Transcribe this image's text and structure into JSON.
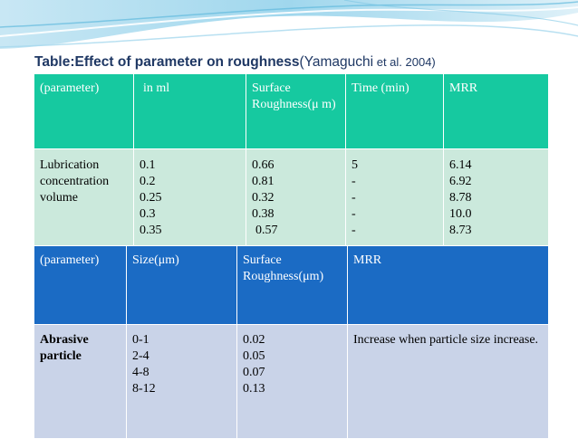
{
  "title": {
    "main": "Table:Effect of parameter on roughness",
    "author": "(Yamaguchi",
    "etal": " et al. 2004)"
  },
  "table1": {
    "headers": [
      "(parameter)",
      "in ml",
      "Surface Roughness(μ m)",
      "Time (min)",
      "MRR"
    ],
    "row": {
      "parameter": "Lubrication concentration volume",
      "in_ml": [
        "0.1",
        "0.2",
        "0.25",
        "0.3",
        "0.35"
      ],
      "surface_roughness": [
        "0.66",
        "0.81",
        "0.32",
        "0.38",
        "0.57"
      ],
      "time": [
        "5",
        "-",
        "-",
        "-",
        "-"
      ],
      "mrr": [
        "6.14",
        "6.92",
        "8.78",
        "10.0",
        "8.73"
      ]
    }
  },
  "table2": {
    "headers": [
      "(parameter)",
      "Size(μm)",
      "Surface Roughness(μm)",
      "MRR"
    ],
    "row": {
      "parameter": "Abrasive particle",
      "size": [
        "0-1",
        "2-4",
        "4-8",
        "8-12"
      ],
      "surface_roughness": [
        "0.02",
        "0.05",
        "0.07",
        "0.13"
      ],
      "mrr": "Increase when particle size increase."
    }
  },
  "colors": {
    "table1_header": "#16c9a0",
    "table1_row": "#cbe9dc",
    "table2_header": "#1b6bc4",
    "table2_row": "#c9d3e8",
    "title": "#1f3864"
  }
}
